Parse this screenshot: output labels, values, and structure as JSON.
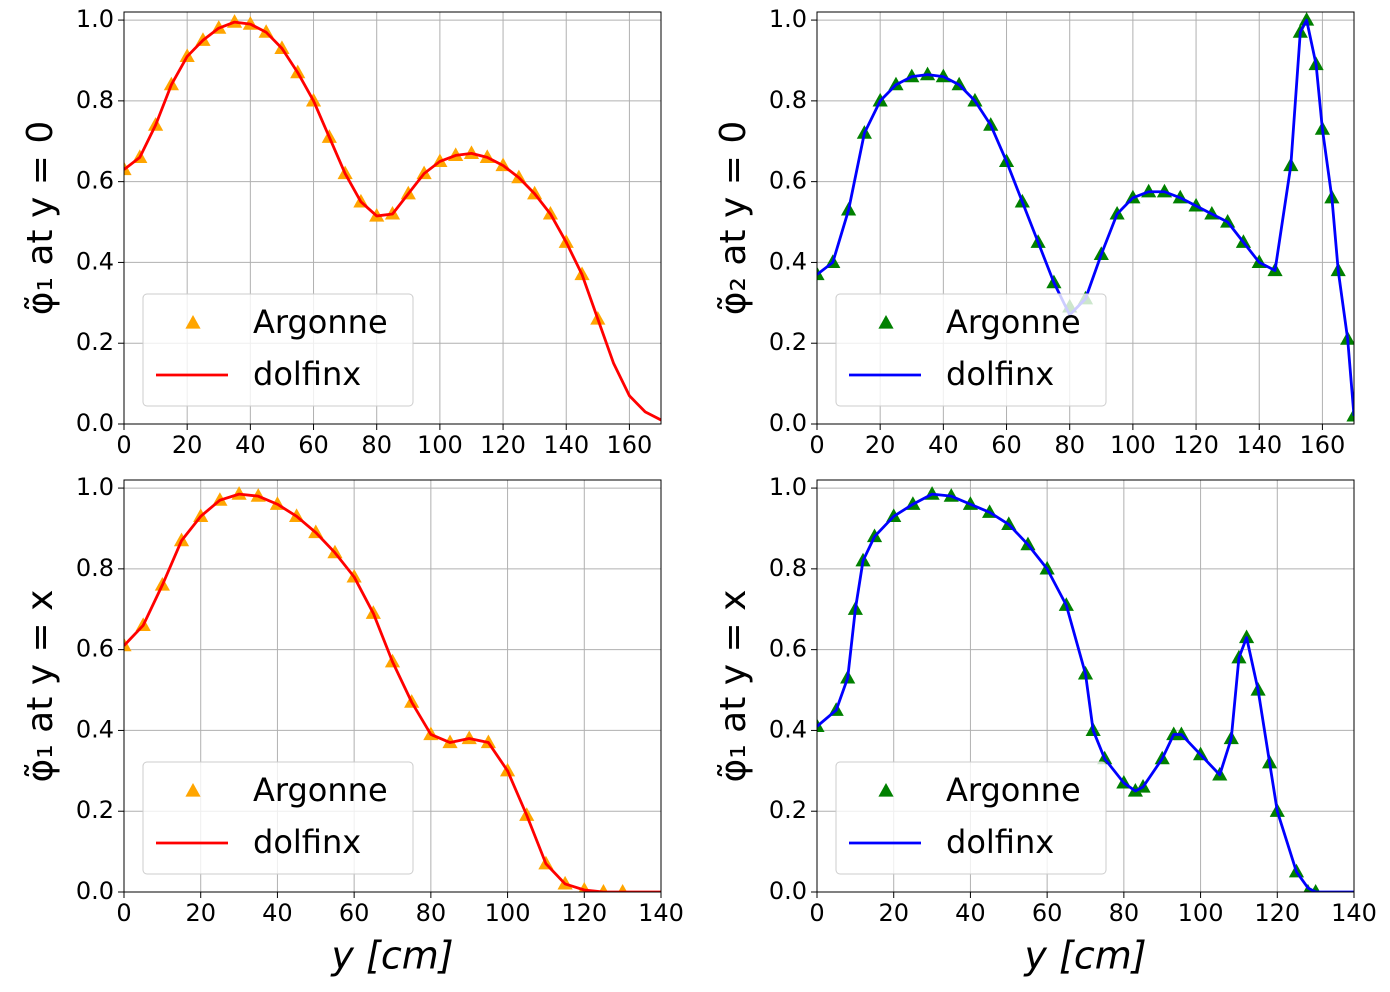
{
  "chart_data": [
    {
      "type": "line",
      "ylabel": "φ̃₁ at y = 0",
      "xlim": [
        0,
        170
      ],
      "ylim": [
        0,
        1.02
      ],
      "xticks": [
        0,
        20,
        40,
        60,
        80,
        100,
        120,
        140,
        160
      ],
      "yticks": [
        {
          "value": 0,
          "label": "0.0"
        },
        0.2,
        0.4,
        0.6,
        0.8,
        {
          "value": 1,
          "label": "1.0"
        }
      ],
      "grid": true,
      "legend": "lower left",
      "series": [
        {
          "name": "Argonne",
          "style": "scatter",
          "color": "#ffa500",
          "x": [
            0,
            5,
            10,
            15,
            20,
            25,
            30,
            35,
            40,
            45,
            50,
            55,
            60,
            65,
            70,
            75,
            80,
            85,
            90,
            95,
            100,
            105,
            110,
            115,
            120,
            125,
            130,
            135,
            140,
            145,
            150
          ],
          "values": [
            0.63,
            0.66,
            0.74,
            0.84,
            0.91,
            0.95,
            0.98,
            0.995,
            0.99,
            0.97,
            0.93,
            0.87,
            0.8,
            0.71,
            0.62,
            0.55,
            0.515,
            0.52,
            0.57,
            0.62,
            0.65,
            0.665,
            0.67,
            0.66,
            0.64,
            0.61,
            0.57,
            0.52,
            0.45,
            0.37,
            0.26
          ]
        },
        {
          "name": "dolfinx",
          "style": "line",
          "color": "#ff0000",
          "x": [
            0,
            5,
            10,
            15,
            20,
            25,
            30,
            35,
            40,
            45,
            50,
            55,
            60,
            65,
            70,
            75,
            80,
            85,
            90,
            95,
            100,
            105,
            110,
            115,
            120,
            125,
            130,
            135,
            140,
            145,
            150,
            155,
            160,
            165,
            170
          ],
          "values": [
            0.63,
            0.66,
            0.74,
            0.84,
            0.91,
            0.95,
            0.98,
            0.995,
            0.99,
            0.97,
            0.93,
            0.87,
            0.8,
            0.71,
            0.62,
            0.55,
            0.515,
            0.52,
            0.57,
            0.62,
            0.65,
            0.665,
            0.67,
            0.66,
            0.64,
            0.61,
            0.57,
            0.52,
            0.45,
            0.37,
            0.26,
            0.15,
            0.07,
            0.03,
            0.01
          ]
        }
      ]
    },
    {
      "type": "line",
      "ylabel": "φ̃₂ at y = 0",
      "xlim": [
        0,
        170
      ],
      "ylim": [
        0,
        1.02
      ],
      "xticks": [
        0,
        20,
        40,
        60,
        80,
        100,
        120,
        140,
        160
      ],
      "yticks": [
        {
          "value": 0,
          "label": "0.0"
        },
        0.2,
        0.4,
        0.6,
        0.8,
        {
          "value": 1,
          "label": "1.0"
        }
      ],
      "grid": true,
      "legend": "lower left",
      "series": [
        {
          "name": "Argonne",
          "style": "scatter",
          "color": "#008000",
          "x": [
            0,
            5,
            10,
            15,
            20,
            25,
            30,
            35,
            40,
            45,
            50,
            55,
            60,
            65,
            70,
            75,
            80,
            85,
            90,
            95,
            100,
            105,
            110,
            115,
            120,
            125,
            130,
            135,
            140,
            145,
            150,
            153,
            155,
            158,
            160,
            163,
            165,
            168,
            170
          ],
          "values": [
            0.37,
            0.4,
            0.53,
            0.72,
            0.8,
            0.84,
            0.86,
            0.865,
            0.86,
            0.84,
            0.8,
            0.74,
            0.65,
            0.55,
            0.45,
            0.35,
            0.29,
            0.31,
            0.42,
            0.52,
            0.56,
            0.575,
            0.575,
            0.56,
            0.54,
            0.52,
            0.5,
            0.45,
            0.4,
            0.38,
            0.64,
            0.97,
            1.0,
            0.89,
            0.73,
            0.56,
            0.38,
            0.21,
            0.02
          ]
        },
        {
          "name": "dolfinx",
          "style": "line",
          "color": "#0000ff",
          "x": [
            0,
            5,
            10,
            15,
            20,
            25,
            30,
            35,
            40,
            45,
            50,
            55,
            60,
            65,
            70,
            75,
            80,
            85,
            90,
            95,
            100,
            105,
            110,
            115,
            120,
            125,
            130,
            135,
            140,
            145,
            150,
            153,
            155,
            158,
            160,
            163,
            165,
            168,
            170
          ],
          "values": [
            0.37,
            0.4,
            0.53,
            0.72,
            0.8,
            0.84,
            0.86,
            0.865,
            0.86,
            0.84,
            0.8,
            0.74,
            0.65,
            0.55,
            0.45,
            0.35,
            0.27,
            0.31,
            0.42,
            0.52,
            0.56,
            0.575,
            0.575,
            0.56,
            0.54,
            0.52,
            0.5,
            0.45,
            0.4,
            0.38,
            0.64,
            0.97,
            1.0,
            0.89,
            0.73,
            0.56,
            0.38,
            0.21,
            0.02
          ]
        }
      ]
    },
    {
      "type": "line",
      "ylabel": "φ̃₁ at y = x",
      "xlabel": "y [cm]",
      "xlim": [
        0,
        140
      ],
      "ylim": [
        0,
        1.02
      ],
      "xticks": [
        0,
        20,
        40,
        60,
        80,
        100,
        120,
        140
      ],
      "yticks": [
        {
          "value": 0,
          "label": "0.0"
        },
        0.2,
        0.4,
        0.6,
        0.8,
        {
          "value": 1,
          "label": "1.0"
        }
      ],
      "grid": true,
      "legend": "lower left",
      "series": [
        {
          "name": "Argonne",
          "style": "scatter",
          "color": "#ffa500",
          "x": [
            0,
            5,
            10,
            15,
            20,
            25,
            30,
            35,
            40,
            45,
            50,
            55,
            60,
            65,
            70,
            75,
            80,
            85,
            90,
            95,
            100,
            105,
            110,
            115,
            120,
            125,
            130
          ],
          "values": [
            0.61,
            0.66,
            0.76,
            0.87,
            0.93,
            0.97,
            0.985,
            0.98,
            0.96,
            0.93,
            0.89,
            0.84,
            0.78,
            0.69,
            0.57,
            0.47,
            0.39,
            0.37,
            0.38,
            0.37,
            0.3,
            0.19,
            0.07,
            0.02,
            0.005,
            0,
            0
          ]
        },
        {
          "name": "dolfinx",
          "style": "line",
          "color": "#ff0000",
          "x": [
            0,
            5,
            10,
            15,
            20,
            25,
            30,
            35,
            40,
            45,
            50,
            55,
            60,
            65,
            70,
            75,
            80,
            85,
            90,
            95,
            100,
            105,
            110,
            115,
            120,
            125,
            130,
            135,
            140
          ],
          "values": [
            0.61,
            0.66,
            0.76,
            0.87,
            0.93,
            0.97,
            0.985,
            0.98,
            0.96,
            0.93,
            0.89,
            0.84,
            0.78,
            0.69,
            0.57,
            0.47,
            0.39,
            0.37,
            0.38,
            0.37,
            0.3,
            0.19,
            0.07,
            0.02,
            0.005,
            0,
            0,
            0,
            0
          ]
        }
      ]
    },
    {
      "type": "line",
      "ylabel": "φ̃₁ at y = x",
      "xlabel": "y [cm]",
      "xlim": [
        0,
        140
      ],
      "ylim": [
        0,
        1.02
      ],
      "xticks": [
        0,
        20,
        40,
        60,
        80,
        100,
        120,
        140
      ],
      "yticks": [
        {
          "value": 0,
          "label": "0.0"
        },
        0.2,
        0.4,
        0.6,
        0.8,
        {
          "value": 1,
          "label": "1.0"
        }
      ],
      "grid": true,
      "legend": "lower left",
      "series": [
        {
          "name": "Argonne",
          "style": "scatter",
          "color": "#008000",
          "x": [
            0,
            5,
            8,
            10,
            12,
            15,
            20,
            25,
            30,
            35,
            40,
            45,
            50,
            55,
            60,
            65,
            70,
            72,
            75,
            80,
            83,
            85,
            90,
            93,
            95,
            100,
            105,
            108,
            110,
            112,
            115,
            118,
            120,
            125,
            128,
            130
          ],
          "values": [
            0.41,
            0.45,
            0.53,
            0.7,
            0.82,
            0.88,
            0.93,
            0.96,
            0.985,
            0.98,
            0.96,
            0.94,
            0.91,
            0.86,
            0.8,
            0.71,
            0.54,
            0.4,
            0.33,
            0.27,
            0.25,
            0.26,
            0.33,
            0.39,
            0.39,
            0.34,
            0.29,
            0.38,
            0.58,
            0.63,
            0.5,
            0.32,
            0.2,
            0.05,
            0,
            0
          ]
        },
        {
          "name": "dolfinx",
          "style": "line",
          "color": "#0000ff",
          "x": [
            0,
            5,
            8,
            10,
            12,
            15,
            20,
            25,
            30,
            35,
            40,
            45,
            50,
            55,
            60,
            65,
            70,
            72,
            75,
            80,
            83,
            85,
            90,
            93,
            95,
            100,
            105,
            108,
            110,
            112,
            115,
            118,
            120,
            125,
            128,
            130,
            135,
            140
          ],
          "values": [
            0.41,
            0.45,
            0.53,
            0.7,
            0.82,
            0.88,
            0.93,
            0.96,
            0.985,
            0.98,
            0.96,
            0.94,
            0.91,
            0.86,
            0.8,
            0.71,
            0.54,
            0.4,
            0.33,
            0.27,
            0.25,
            0.26,
            0.33,
            0.39,
            0.39,
            0.34,
            0.29,
            0.38,
            0.58,
            0.63,
            0.5,
            0.32,
            0.2,
            0.05,
            0.01,
            0,
            0,
            0
          ]
        }
      ]
    }
  ]
}
